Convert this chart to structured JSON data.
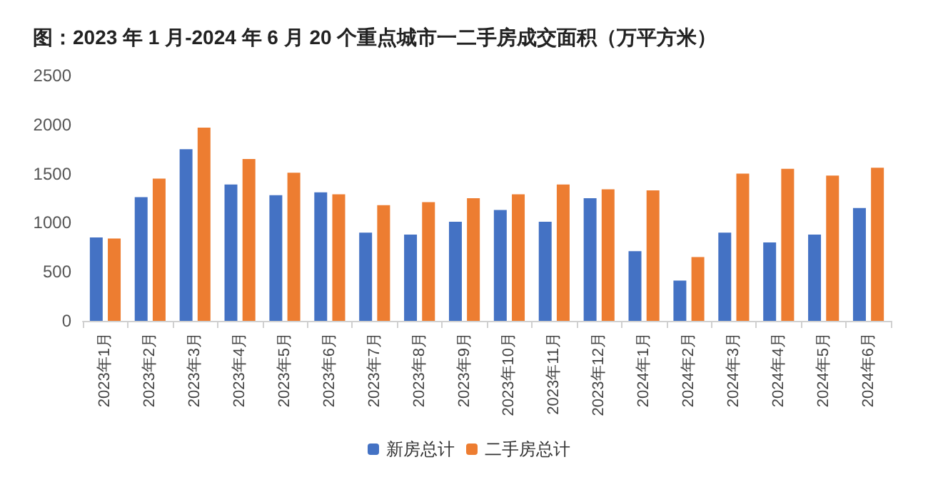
{
  "chart_data": {
    "type": "bar",
    "title": "图：2023 年 1 月-2024 年 6 月 20 个重点城市一二手房成交面积（万平方米）",
    "categories": [
      "2023年1月",
      "2023年2月",
      "2023年3月",
      "2023年4月",
      "2023年5月",
      "2023年6月",
      "2023年7月",
      "2023年8月",
      "2023年9月",
      "2023年10月",
      "2023年11月",
      "2023年12月",
      "2024年1月",
      "2024年2月",
      "2024年3月",
      "2024年4月",
      "2024年5月",
      "2024年6月"
    ],
    "series": [
      {
        "name": "新房总计",
        "color": "#4472c4",
        "values": [
          850,
          1260,
          1750,
          1390,
          1280,
          1310,
          900,
          880,
          1010,
          1130,
          1010,
          1250,
          710,
          410,
          900,
          800,
          880,
          1150
        ]
      },
      {
        "name": "二手房总计",
        "color": "#ed7d31",
        "values": [
          840,
          1450,
          1970,
          1650,
          1510,
          1290,
          1180,
          1210,
          1250,
          1290,
          1390,
          1340,
          1330,
          650,
          1500,
          1550,
          1480,
          1560
        ]
      }
    ],
    "ylim": [
      0,
      2500
    ],
    "yticks": [
      0,
      500,
      1000,
      1500,
      2000,
      2500
    ],
    "grid": false,
    "legend": "bottom"
  }
}
